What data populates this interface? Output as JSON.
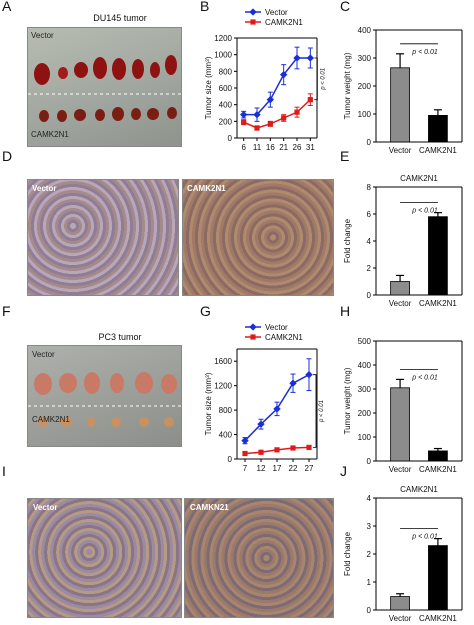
{
  "panels": {
    "A": {
      "label": "A",
      "title": "DU145 tumor",
      "top_text": "Vector",
      "bottom_text": "CAMK2N1"
    },
    "B": {
      "label": "B"
    },
    "C": {
      "label": "C"
    },
    "D": {
      "label": "D",
      "left_text": "Vector",
      "right_text": "CAMK2N1"
    },
    "E": {
      "label": "E"
    },
    "F": {
      "label": "F",
      "title": "PC3  tumor",
      "top_text": "Vector",
      "bottom_text": "CAMK2N1"
    },
    "G": {
      "label": "G"
    },
    "H": {
      "label": "H"
    },
    "I": {
      "label": "I",
      "left_text": "Vector",
      "right_text": "CAMKN21"
    },
    "J": {
      "label": "J"
    }
  },
  "colors": {
    "vector": "#1a2fd6",
    "camk2n1": "#e01a1a",
    "bar_vector": "#8c8c8c",
    "bar_camk2n1": "#000000"
  },
  "chart_data": [
    {
      "panel": "B",
      "type": "line",
      "ylabel": "Tumor size (mm³)",
      "x": [
        6,
        11,
        16,
        21,
        26,
        31
      ],
      "xticks": [
        "6",
        "11",
        "16",
        "21",
        "26",
        "31"
      ],
      "ylim": [
        0,
        1200
      ],
      "yticks": [
        "0",
        "200",
        "400",
        "600",
        "800",
        "1000",
        "1200"
      ],
      "series": [
        {
          "name": "Vector",
          "values": [
            280,
            280,
            460,
            760,
            960,
            960
          ],
          "errors": [
            40,
            80,
            90,
            120,
            130,
            120
          ]
        },
        {
          "name": "CAMK2N1",
          "values": [
            190,
            120,
            170,
            240,
            310,
            460
          ],
          "errors": [
            30,
            25,
            30,
            40,
            60,
            70
          ]
        }
      ],
      "annotation": "p < 0.01"
    },
    {
      "panel": "C",
      "type": "bar",
      "ylabel": "Tumor weight (mg)",
      "categories": [
        "Vector",
        "CAMK2N1"
      ],
      "values": [
        265,
        95
      ],
      "errors": [
        50,
        20
      ],
      "ylim": [
        0,
        400
      ],
      "yticks": [
        "0",
        "100",
        "200",
        "300",
        "400"
      ],
      "annotation": "p < 0.01"
    },
    {
      "panel": "E",
      "type": "bar",
      "title": "CAMK2N1",
      "ylabel": "Fold change",
      "categories": [
        "Vector",
        "CAMK2N1"
      ],
      "values": [
        1.0,
        5.8
      ],
      "errors": [
        0.45,
        0.3
      ],
      "ylim": [
        0,
        8
      ],
      "yticks": [
        "0",
        "2",
        "4",
        "6",
        "8"
      ],
      "annotation": "p < 0.01"
    },
    {
      "panel": "G",
      "type": "line",
      "ylabel": "Tumor size (mm³)",
      "x": [
        7,
        12,
        17,
        22,
        27
      ],
      "xticks": [
        "7",
        "12",
        "17",
        "22",
        "27"
      ],
      "ylim": [
        0,
        1800
      ],
      "yticks": [
        "0",
        "400",
        "800",
        "1200",
        "1600"
      ],
      "series": [
        {
          "name": "Vector",
          "values": [
            300,
            570,
            820,
            1240,
            1380
          ],
          "errors": [
            50,
            80,
            110,
            150,
            260
          ]
        },
        {
          "name": "CAMK2N1",
          "values": [
            90,
            110,
            150,
            180,
            190
          ],
          "errors": [
            15,
            20,
            20,
            25,
            30
          ]
        }
      ],
      "annotation": "p < 0.01"
    },
    {
      "panel": "H",
      "type": "bar",
      "ylabel": "Tumor weight (mg)",
      "categories": [
        "Vector",
        "CAMK2N1"
      ],
      "values": [
        305,
        42
      ],
      "errors": [
        35,
        10
      ],
      "ylim": [
        0,
        500
      ],
      "yticks": [
        "0",
        "100",
        "200",
        "300",
        "400",
        "500"
      ],
      "annotation": "p < 0.01"
    },
    {
      "panel": "J",
      "type": "bar",
      "title": "CAMK2N1",
      "ylabel": "Fold change",
      "categories": [
        "Vector",
        "CAMK2N1"
      ],
      "values": [
        0.48,
        2.3
      ],
      "errors": [
        0.1,
        0.25
      ],
      "ylim": [
        0,
        4
      ],
      "yticks": [
        "0",
        "1",
        "2",
        "3",
        "4"
      ],
      "annotation": "p < 0.01"
    }
  ]
}
